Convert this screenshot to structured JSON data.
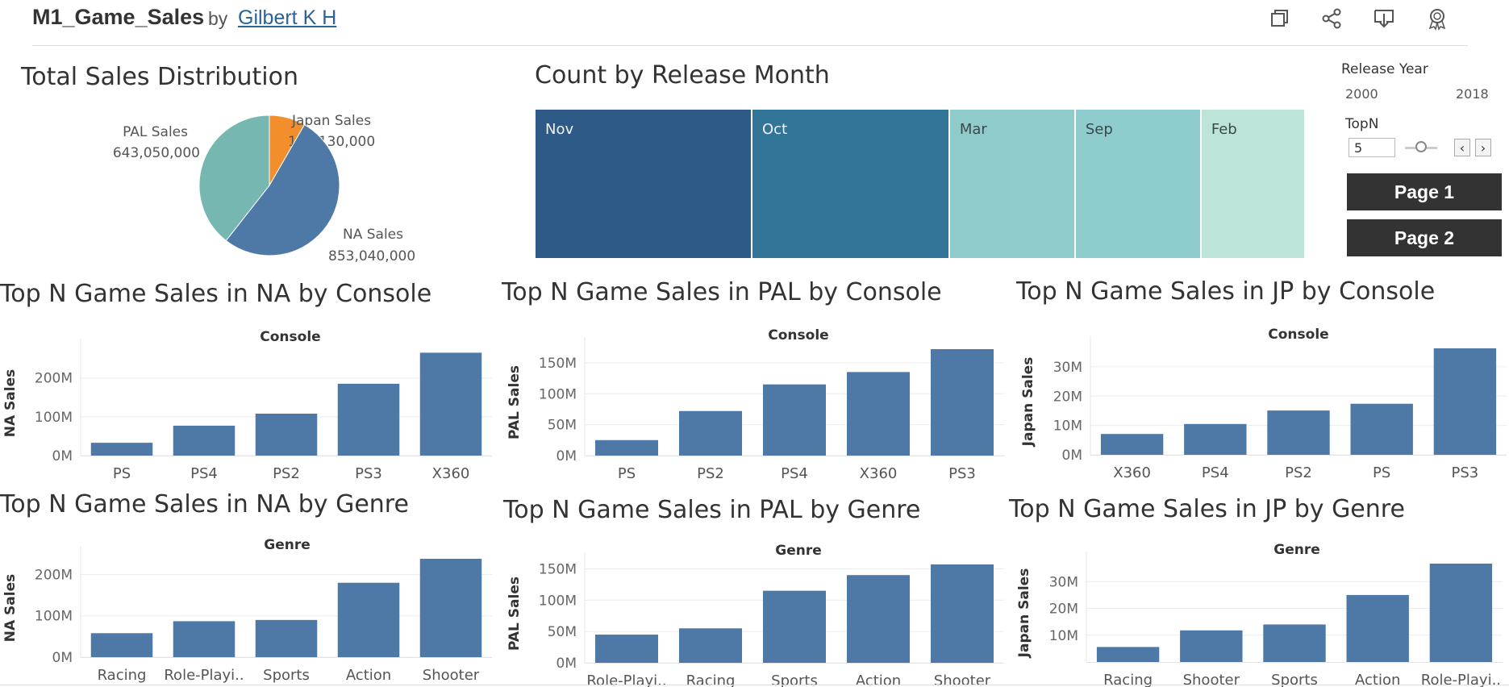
{
  "header": {
    "title": "M1_Game_Sales",
    "by": "by",
    "author": "Gilbert K H",
    "icons": [
      "duplicate-icon",
      "share-icon",
      "download-icon",
      "badge-icon"
    ]
  },
  "panels": {
    "pie_title": "Total Sales Distribution",
    "month_title": "Count by Release Month",
    "na_console_title": "Top N Game Sales in NA by Console",
    "pal_console_title": "Top N Game Sales in PAL by Console",
    "jp_console_title": "Top N Game Sales in JP by Console",
    "na_genre_title": "Top N Game Sales in NA by Genre",
    "pal_genre_title": "Top N Game Sales in PAL by Genre",
    "jp_genre_title": "Top N Game Sales in JP by Genre"
  },
  "controls": {
    "release_year_label": "Release Year",
    "year_min": "2000",
    "year_max": "2018",
    "topn_label": "TopN",
    "topn_value": "5",
    "prev_symbol": "‹",
    "next_symbol": "›",
    "page1": "Page 1",
    "page2": "Page 2"
  },
  "chart_data": [
    {
      "id": "pie",
      "type": "pie",
      "title": "Total Sales Distribution",
      "slices": [
        {
          "label": "Japan Sales",
          "value": 136130000,
          "display": "136,130,000",
          "color": "#f28e2b"
        },
        {
          "label": "NA Sales",
          "value": 853040000,
          "display": "853,040,000",
          "color": "#4e79a7"
        },
        {
          "label": "PAL Sales",
          "value": 643050000,
          "display": "643,050,000",
          "color": "#76b7b2"
        }
      ]
    },
    {
      "id": "months",
      "type": "heatmap",
      "title": "Count by Release Month",
      "categories": [
        "Nov",
        "Oct",
        "Mar",
        "Sep",
        "Feb"
      ],
      "relative_values": [
        1.0,
        0.91,
        0.58,
        0.58,
        0.48
      ],
      "colors": [
        "#2e5a87",
        "#327599",
        "#90cbcc",
        "#8fcccd",
        "#bde4d8"
      ]
    },
    {
      "id": "na_console",
      "type": "bar",
      "title": "Top N Game Sales in NA by Console",
      "xlabel": "Console",
      "ylabel": "NA Sales",
      "categories": [
        "PS",
        "PS4",
        "PS2",
        "PS3",
        "X360"
      ],
      "values": [
        33,
        77,
        108,
        185,
        265
      ],
      "ylim": [
        0,
        270
      ],
      "ticks": [
        0,
        100,
        200
      ],
      "tick_labels": [
        "0M",
        "100M",
        "200M"
      ],
      "unit": "M"
    },
    {
      "id": "pal_console",
      "type": "bar",
      "title": "Top N Game Sales in PAL by Console",
      "xlabel": "Console",
      "ylabel": "PAL Sales",
      "categories": [
        "PS",
        "PS2",
        "PS4",
        "X360",
        "PS3"
      ],
      "values": [
        25,
        72,
        115,
        135,
        172
      ],
      "ylim": [
        0,
        172
      ],
      "ticks": [
        0,
        50,
        100,
        150
      ],
      "tick_labels": [
        "0M",
        "50M",
        "100M",
        "150M"
      ],
      "unit": "M"
    },
    {
      "id": "jp_console",
      "type": "bar",
      "title": "Top N Game Sales in JP by Console",
      "xlabel": "Console",
      "ylabel": "Japan Sales",
      "categories": [
        "X360",
        "PS4",
        "PS2",
        "PS",
        "PS3"
      ],
      "values": [
        7.1,
        10.5,
        15.1,
        17.4,
        36.3
      ],
      "ylim": [
        0,
        36.3
      ],
      "ticks": [
        0,
        10,
        20,
        30
      ],
      "tick_labels": [
        "0M",
        "10M",
        "20M",
        "30M"
      ],
      "unit": "M"
    },
    {
      "id": "na_genre",
      "type": "bar",
      "title": "Top N Game Sales in NA by Genre",
      "xlabel": "Genre",
      "ylabel": "NA Sales",
      "categories": [
        "Racing",
        "Role-Playi..",
        "Sports",
        "Action",
        "Shooter"
      ],
      "values": [
        58,
        87,
        90,
        180,
        238
      ],
      "ylim": [
        0,
        238
      ],
      "ticks": [
        0,
        100,
        200
      ],
      "tick_labels": [
        "0M",
        "100M",
        "200M"
      ],
      "unit": "M"
    },
    {
      "id": "pal_genre",
      "type": "bar",
      "title": "Top N Game Sales in PAL by Genre",
      "xlabel": "Genre",
      "ylabel": "PAL Sales",
      "categories": [
        "Role-Playi..",
        "Racing",
        "Sports",
        "Action",
        "Shooter"
      ],
      "values": [
        45,
        55,
        115,
        140,
        157
      ],
      "ylim": [
        0,
        157
      ],
      "ticks": [
        0,
        50,
        100,
        150
      ],
      "tick_labels": [
        "0M",
        "50M",
        "100M",
        "150M"
      ],
      "unit": "M"
    },
    {
      "id": "jp_genre",
      "type": "bar",
      "title": "Top N Game Sales in JP by Genre",
      "xlabel": "Genre",
      "ylabel": "Japan Sales",
      "categories": [
        "Racing",
        "Shooter",
        "Sports",
        "Action",
        "Role-Playi.."
      ],
      "values": [
        5.6,
        11.8,
        14.0,
        25.0,
        36.7
      ],
      "ylim": [
        0,
        36.7
      ],
      "ticks": [
        10,
        20,
        30
      ],
      "tick_labels": [
        "10M",
        "20M",
        "30M"
      ],
      "unit": "M"
    }
  ]
}
